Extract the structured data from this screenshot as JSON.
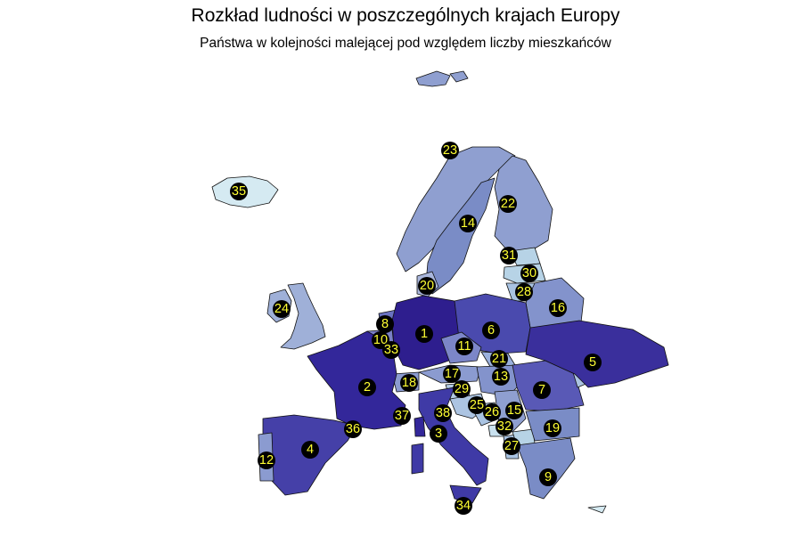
{
  "title": "Rozkład ludności w poszczególnych krajach Europy",
  "subtitle": "Państwa w kolejności malejącej pod względem liczby mieszkańców",
  "colors": {
    "background": "#ffffff",
    "rank_1": "#2e1e8e",
    "rank_low": "#d5eaf2",
    "marker": "#000000",
    "label": "#ffff33",
    "border": "#111111"
  },
  "ranks": [
    "1",
    "2",
    "3",
    "4",
    "5",
    "6",
    "7",
    "8",
    "9",
    "10",
    "11",
    "12",
    "13",
    "14",
    "15",
    "16",
    "17",
    "18",
    "19",
    "20",
    "21",
    "22",
    "23",
    "24",
    "25",
    "26",
    "27",
    "28",
    "29",
    "30",
    "31",
    "32",
    "33",
    "34",
    "35",
    "36",
    "37",
    "38"
  ]
}
